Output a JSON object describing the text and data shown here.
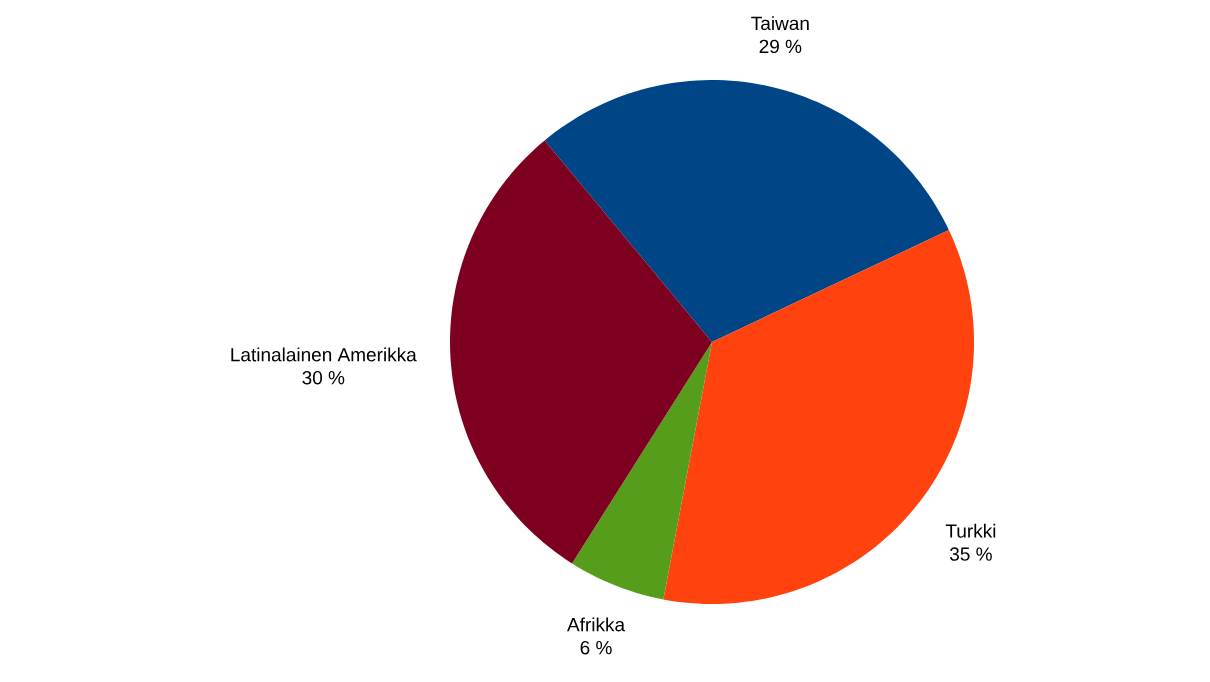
{
  "chart_data": {
    "type": "pie",
    "categories": [
      "Taiwan",
      "Turkki",
      "Afrikka",
      "Latinalainen Amerikka"
    ],
    "values": [
      29,
      35,
      6,
      30
    ],
    "colors": [
      "#004586",
      "#ff420e",
      "#579d1c",
      "#7e0021"
    ],
    "value_labels": [
      "29 %",
      "35 %",
      "6 %",
      "30 %"
    ]
  }
}
